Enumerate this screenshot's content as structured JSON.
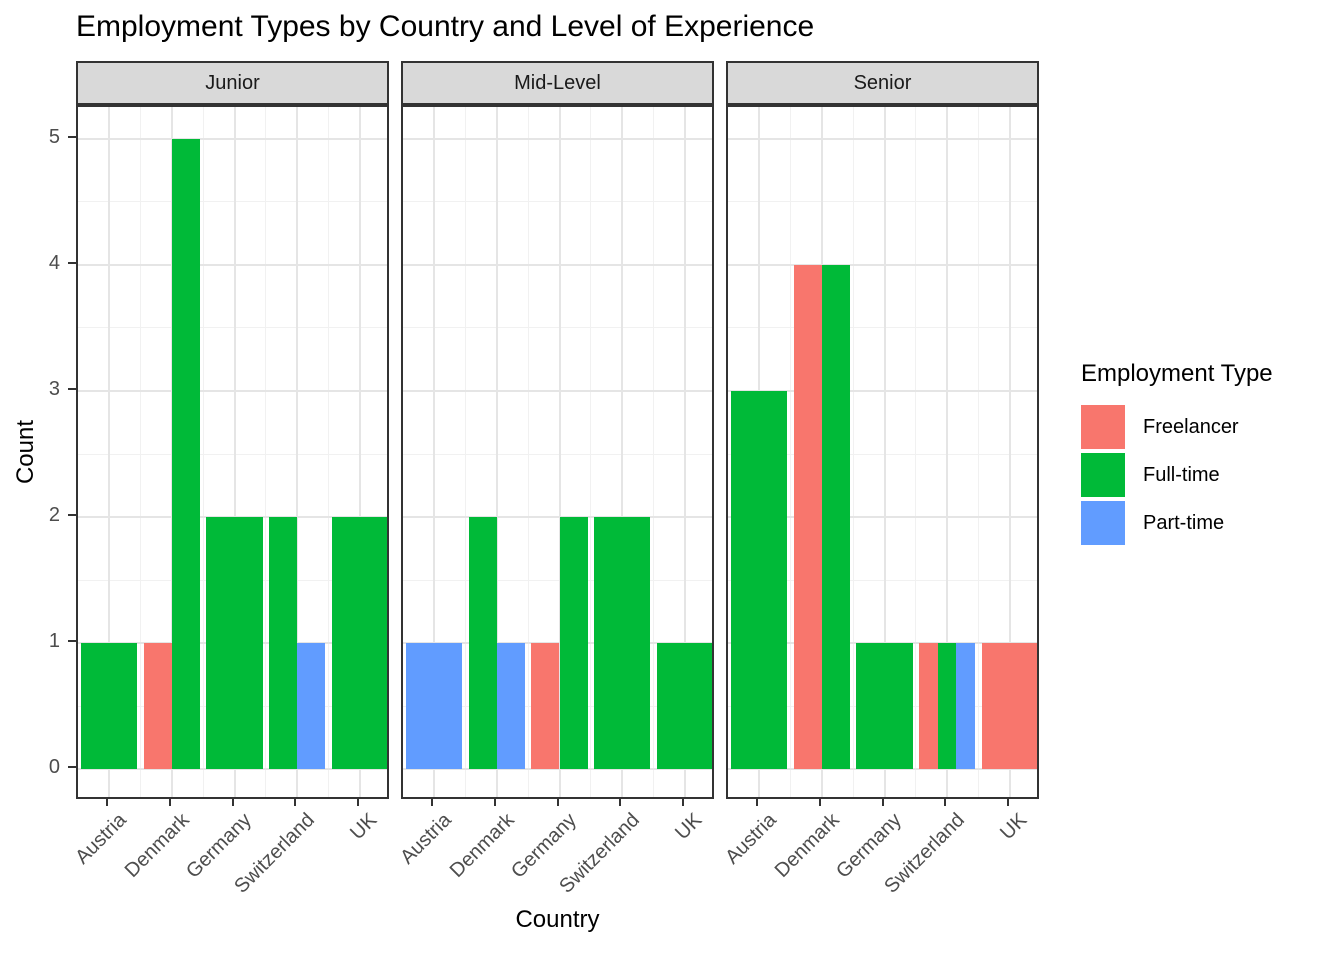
{
  "chart_data": {
    "type": "bar",
    "title": "Employment Types by Country and Level of Experience",
    "xlabel": "Country",
    "ylabel": "Count",
    "categories": [
      "Austria",
      "Denmark",
      "Germany",
      "Switzerland",
      "UK"
    ],
    "y_ticks": [
      0,
      1,
      2,
      3,
      4,
      5
    ],
    "ylim": [
      -0.25,
      5.25
    ],
    "grid": "on",
    "legend_position": "right",
    "legend": {
      "title": "Employment Type",
      "entries": [
        {
          "label": "Freelancer",
          "color": "#F8766D"
        },
        {
          "label": "Full-time",
          "color": "#00BA38"
        },
        {
          "label": "Part-time",
          "color": "#619CFF"
        }
      ]
    },
    "colors": {
      "Freelancer": "#F8766D",
      "Full-time": "#00BA38",
      "Part-time": "#619CFF"
    },
    "facets": [
      {
        "label": "Junior",
        "data": [
          {
            "country": "Austria",
            "bars": [
              {
                "type": "Full-time",
                "value": 1
              }
            ]
          },
          {
            "country": "Denmark",
            "bars": [
              {
                "type": "Freelancer",
                "value": 1
              },
              {
                "type": "Full-time",
                "value": 5
              }
            ]
          },
          {
            "country": "Germany",
            "bars": [
              {
                "type": "Full-time",
                "value": 2
              }
            ]
          },
          {
            "country": "Switzerland",
            "bars": [
              {
                "type": "Full-time",
                "value": 2
              },
              {
                "type": "Part-time",
                "value": 1
              }
            ]
          },
          {
            "country": "UK",
            "bars": [
              {
                "type": "Full-time",
                "value": 2
              }
            ]
          }
        ]
      },
      {
        "label": "Mid-Level",
        "data": [
          {
            "country": "Austria",
            "bars": [
              {
                "type": "Part-time",
                "value": 1
              }
            ]
          },
          {
            "country": "Denmark",
            "bars": [
              {
                "type": "Full-time",
                "value": 2
              },
              {
                "type": "Part-time",
                "value": 1
              }
            ]
          },
          {
            "country": "Germany",
            "bars": [
              {
                "type": "Freelancer",
                "value": 1
              },
              {
                "type": "Full-time",
                "value": 2
              }
            ]
          },
          {
            "country": "Switzerland",
            "bars": [
              {
                "type": "Full-time",
                "value": 2
              }
            ]
          },
          {
            "country": "UK",
            "bars": [
              {
                "type": "Full-time",
                "value": 1
              }
            ]
          }
        ]
      },
      {
        "label": "Senior",
        "data": [
          {
            "country": "Austria",
            "bars": [
              {
                "type": "Full-time",
                "value": 3
              }
            ]
          },
          {
            "country": "Denmark",
            "bars": [
              {
                "type": "Freelancer",
                "value": 4
              },
              {
                "type": "Full-time",
                "value": 4
              }
            ]
          },
          {
            "country": "Germany",
            "bars": [
              {
                "type": "Full-time",
                "value": 1
              }
            ]
          },
          {
            "country": "Switzerland",
            "bars": [
              {
                "type": "Freelancer",
                "value": 1
              },
              {
                "type": "Full-time",
                "value": 1
              },
              {
                "type": "Part-time",
                "value": 1
              }
            ]
          },
          {
            "country": "UK",
            "bars": [
              {
                "type": "Freelancer",
                "value": 1
              }
            ]
          }
        ]
      }
    ]
  }
}
